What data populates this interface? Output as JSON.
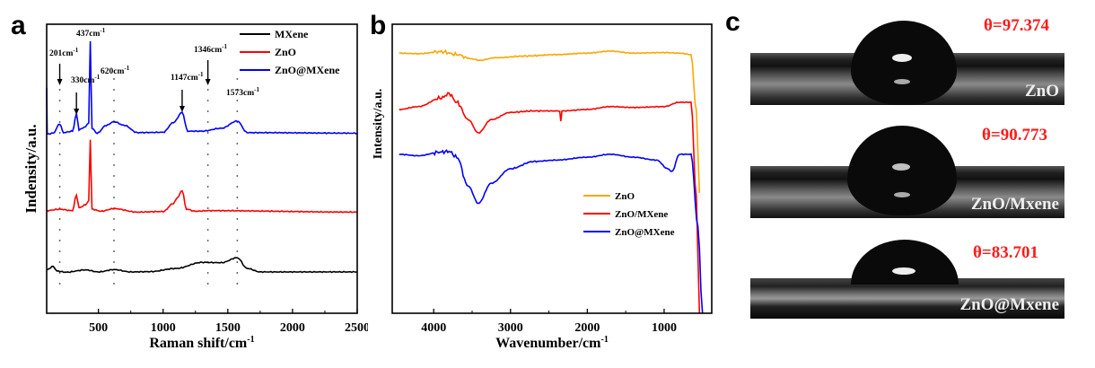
{
  "panels": {
    "a": "a",
    "b": "b",
    "c": "c"
  },
  "chart_data": [
    {
      "type": "line",
      "panel": "a",
      "xlabel": "Raman shift/cm",
      "xlabel_sup": "-1",
      "ylabel": "Indensity/a.u.",
      "xlim": [
        100,
        2500
      ],
      "ylim": [
        0,
        100
      ],
      "xticks": [
        500,
        1000,
        1500,
        2000,
        2500
      ],
      "y_ticks_shown": false,
      "legend_position": "top-right",
      "annotations": [
        {
          "text": "437cm",
          "sup": "-1",
          "x": 437,
          "arrow": false
        },
        {
          "text": "201cm",
          "sup": "-1",
          "x": 201,
          "arrow": true
        },
        {
          "text": "330cm",
          "sup": "-1",
          "x": 330,
          "arrow": true
        },
        {
          "text": "620cm",
          "sup": "-1",
          "x": 620,
          "arrow": false
        },
        {
          "text": "1147cm",
          "sup": "-1",
          "x": 1147,
          "arrow": true
        },
        {
          "text": "1346cm",
          "sup": "-1",
          "x": 1346,
          "arrow": true
        },
        {
          "text": "1573cm",
          "sup": "-1",
          "x": 1573,
          "arrow": false
        }
      ],
      "dashed_lines_x": [
        201,
        620,
        1346,
        1573
      ],
      "series": [
        {
          "name": "MXene",
          "color": "#000000",
          "points": [
            [
              100,
              15
            ],
            [
              150,
              16.2
            ],
            [
              180,
              14.6
            ],
            [
              250,
              14.2
            ],
            [
              400,
              15
            ],
            [
              500,
              14.3
            ],
            [
              620,
              15.1
            ],
            [
              750,
              14.3
            ],
            [
              900,
              14.4
            ],
            [
              1100,
              15.5
            ],
            [
              1300,
              17.6
            ],
            [
              1450,
              17.5
            ],
            [
              1573,
              19.2
            ],
            [
              1650,
              15.5
            ],
            [
              1750,
              14.3
            ],
            [
              2500,
              14.3
            ]
          ]
        },
        {
          "name": "ZnO",
          "color": "#ff0000",
          "points": [
            [
              100,
              35.5
            ],
            [
              200,
              36
            ],
            [
              300,
              35.5
            ],
            [
              330,
              41
            ],
            [
              350,
              36.5
            ],
            [
              400,
              37.5
            ],
            [
              425,
              39
            ],
            [
              437,
              60
            ],
            [
              450,
              36
            ],
            [
              520,
              35.3
            ],
            [
              620,
              36.2
            ],
            [
              800,
              35
            ],
            [
              1000,
              35.2
            ],
            [
              1080,
              38
            ],
            [
              1110,
              40
            ],
            [
              1147,
              42.5
            ],
            [
              1180,
              36
            ],
            [
              1250,
              35.3
            ],
            [
              1350,
              35.5
            ],
            [
              2500,
              35
            ]
          ]
        },
        {
          "name": "ZnO@MXene",
          "color": "#0000ff",
          "points": [
            [
              100,
              78
            ],
            [
              104,
              62
            ],
            [
              150,
              62.3
            ],
            [
              201,
              65.5
            ],
            [
              230,
              62.5
            ],
            [
              300,
              63
            ],
            [
              330,
              69
            ],
            [
              350,
              63.5
            ],
            [
              400,
              64.5
            ],
            [
              425,
              66
            ],
            [
              437,
              94
            ],
            [
              450,
              64
            ],
            [
              490,
              62.3
            ],
            [
              560,
              65
            ],
            [
              620,
              66.3
            ],
            [
              700,
              65
            ],
            [
              800,
              62.5
            ],
            [
              1000,
              62.6
            ],
            [
              1080,
              66
            ],
            [
              1147,
              69.5
            ],
            [
              1190,
              63
            ],
            [
              1300,
              63
            ],
            [
              1450,
              64
            ],
            [
              1573,
              66.5
            ],
            [
              1650,
              62.5
            ],
            [
              2500,
              62.3
            ]
          ]
        }
      ]
    },
    {
      "type": "line",
      "panel": "b",
      "xlabel": "Wavenumber/cm",
      "xlabel_sup": "-1",
      "ylabel": "Intensity/a.u.",
      "xlim": [
        4540,
        380
      ],
      "ylim": [
        0,
        100
      ],
      "xticks": [
        4000,
        3000,
        2000,
        1000
      ],
      "y_ticks_shown": false,
      "legend_position": "lower-right",
      "series": [
        {
          "name": "ZnO",
          "color": "#ffa500",
          "points": [
            [
              4450,
              90
            ],
            [
              4200,
              89.8
            ],
            [
              3900,
              90.5
            ],
            [
              3700,
              89.5
            ],
            [
              3500,
              88
            ],
            [
              3400,
              87.5
            ],
            [
              3200,
              88.4
            ],
            [
              2800,
              89
            ],
            [
              2400,
              89.5
            ],
            [
              2000,
              90
            ],
            [
              1700,
              90.7
            ],
            [
              1400,
              90
            ],
            [
              1000,
              90.2
            ],
            [
              800,
              90
            ],
            [
              650,
              89.5
            ],
            [
              580,
              70
            ],
            [
              540,
              41.6
            ]
          ]
        },
        {
          "name": "ZnO/MXene",
          "color": "#ff0000",
          "points": [
            [
              4450,
              70.5
            ],
            [
              4200,
              71.5
            ],
            [
              3900,
              74.5
            ],
            [
              3800,
              76
            ],
            [
              3700,
              73
            ],
            [
              3550,
              67
            ],
            [
              3420,
              62.4
            ],
            [
              3250,
              67
            ],
            [
              3000,
              69.5
            ],
            [
              2700,
              70
            ],
            [
              2360,
              70
            ],
            [
              2345,
              66.5
            ],
            [
              2330,
              70
            ],
            [
              2000,
              70.5
            ],
            [
              1700,
              71.5
            ],
            [
              1400,
              71.2
            ],
            [
              1000,
              71.5
            ],
            [
              800,
              73
            ],
            [
              650,
              73
            ],
            [
              580,
              40
            ],
            [
              540,
              0
            ]
          ]
        },
        {
          "name": "ZnO@MXene",
          "color": "#0000ff",
          "points": [
            [
              4450,
              55
            ],
            [
              4200,
              54.5
            ],
            [
              3900,
              55.8
            ],
            [
              3800,
              56
            ],
            [
              3700,
              54
            ],
            [
              3550,
              44
            ],
            [
              3420,
              38
            ],
            [
              3250,
              45
            ],
            [
              3000,
              50
            ],
            [
              2700,
              52.5
            ],
            [
              2400,
              53
            ],
            [
              2000,
              54
            ],
            [
              1700,
              55
            ],
            [
              1400,
              54
            ],
            [
              1100,
              53
            ],
            [
              950,
              50
            ],
            [
              900,
              49
            ],
            [
              800,
              55
            ],
            [
              650,
              55
            ],
            [
              560,
              30
            ],
            [
              500,
              0
            ]
          ]
        }
      ]
    }
  ],
  "contact_angle": [
    {
      "angle": "θ=97.374",
      "label": "ZnO"
    },
    {
      "angle": "θ=90.773",
      "label": "ZnO/Mxene"
    },
    {
      "angle": "θ=83.701",
      "label": "ZnO@Mxene"
    }
  ]
}
